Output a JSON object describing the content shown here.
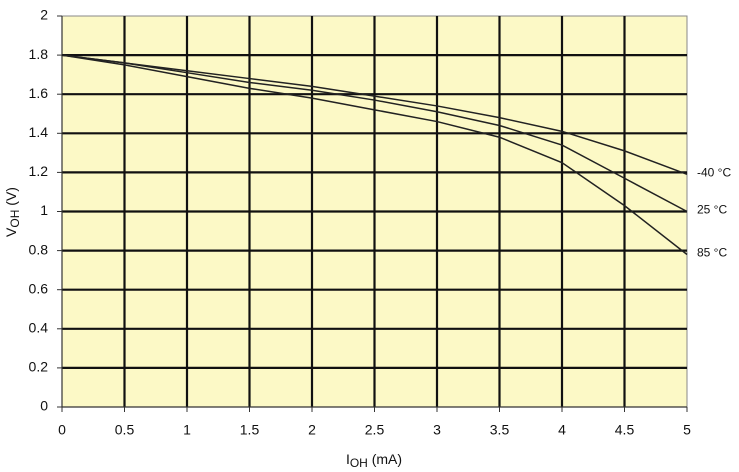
{
  "chart_data": {
    "type": "line",
    "xlabel": [
      "I",
      "OH",
      " (mA)"
    ],
    "ylabel": [
      "V",
      "OH",
      " (V)"
    ],
    "x": [
      0,
      0.5,
      1,
      1.5,
      2,
      2.5,
      3,
      3.5,
      4,
      4.5,
      5
    ],
    "series": [
      {
        "name": "-40 °C",
        "color": "#222222",
        "values": [
          1.8,
          1.76,
          1.72,
          1.68,
          1.64,
          1.59,
          1.54,
          1.48,
          1.41,
          1.31,
          1.19
        ]
      },
      {
        "name": "25 °C",
        "color": "#222222",
        "values": [
          1.8,
          1.76,
          1.71,
          1.66,
          1.62,
          1.57,
          1.51,
          1.44,
          1.34,
          1.17,
          1.0
        ]
      },
      {
        "name": "85 °C",
        "color": "#222222",
        "values": [
          1.8,
          1.75,
          1.69,
          1.63,
          1.58,
          1.52,
          1.46,
          1.38,
          1.25,
          1.03,
          0.78
        ]
      }
    ],
    "xlim": [
      0,
      5
    ],
    "xticks": [
      0,
      0.5,
      1,
      1.5,
      2,
      2.5,
      3,
      3.5,
      4,
      4.5,
      5
    ],
    "ylim": [
      0,
      2
    ],
    "yticks": [
      0,
      0.2,
      0.4,
      0.6,
      0.8,
      1,
      1.2,
      1.4,
      1.6,
      1.8,
      2
    ],
    "grid": true,
    "background": "#fcf9c6"
  }
}
